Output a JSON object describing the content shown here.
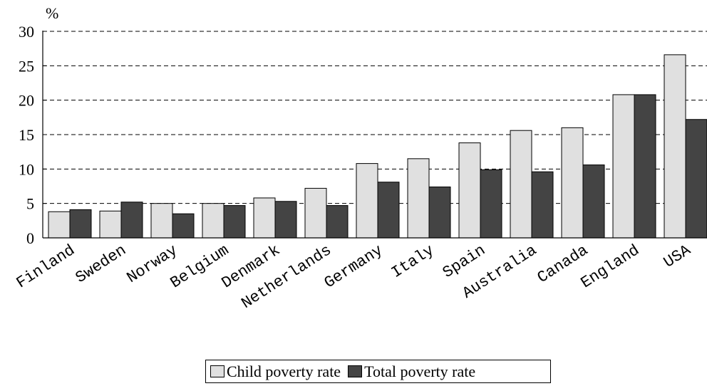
{
  "chart_data": {
    "type": "bar",
    "ylabel": "%",
    "ylim": [
      0,
      30
    ],
    "yticks": [
      0,
      5,
      10,
      15,
      20,
      25,
      30
    ],
    "grid": "dashed horizontal",
    "legend_position": "bottom",
    "categories": [
      "Finland",
      "Sweden",
      "Norway",
      "Belgium",
      "Denmark",
      "Netherlands",
      "Germany",
      "Italy",
      "Spain",
      "Australia",
      "Canada",
      "England",
      "USA"
    ],
    "series": [
      {
        "name": "Child poverty rate",
        "color": "#e0e0e0",
        "values": [
          3.8,
          3.9,
          5.0,
          5.0,
          5.8,
          7.2,
          10.8,
          11.5,
          13.8,
          15.6,
          16.0,
          20.8,
          26.6
        ]
      },
      {
        "name": "Total poverty rate",
        "color": "#444444",
        "values": [
          4.1,
          5.2,
          3.5,
          4.7,
          5.3,
          4.7,
          8.1,
          7.4,
          9.9,
          9.6,
          10.6,
          20.8,
          17.2
        ]
      }
    ]
  }
}
